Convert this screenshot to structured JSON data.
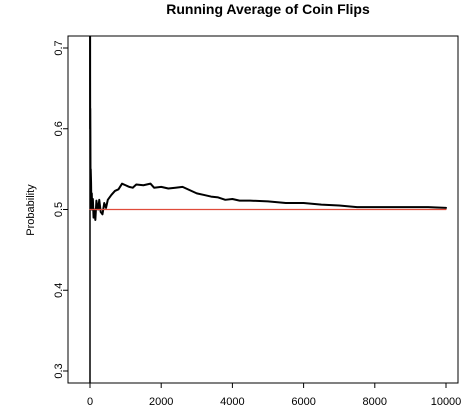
{
  "chart_data": {
    "type": "line",
    "title": "Running Average of Coin Flips",
    "xlabel": "",
    "ylabel": "Probability",
    "xlim": [
      0,
      10000
    ],
    "ylim": [
      0.3,
      0.7
    ],
    "x_ticks": [
      0,
      2000,
      4000,
      6000,
      8000,
      10000
    ],
    "y_ticks": [
      0.3,
      0.4,
      0.5,
      0.6,
      0.7
    ],
    "grid": false,
    "legend": "none",
    "series": [
      {
        "color": "#000000",
        "x": [
          1,
          3,
          5,
          8,
          10,
          15,
          20,
          30,
          40,
          50,
          60,
          80,
          100,
          120,
          150,
          180,
          200,
          230,
          260,
          300,
          350,
          400,
          450,
          500,
          600,
          700,
          800,
          900,
          1000,
          1100,
          1200,
          1300,
          1500,
          1700,
          1800,
          2000,
          2200,
          2400,
          2600,
          2800,
          3000,
          3200,
          3400,
          3600,
          3800,
          4000,
          4200,
          4500,
          5000,
          5500,
          6000,
          6500,
          7000,
          7500,
          8000,
          8500,
          9000,
          9500,
          10000
        ],
        "y": [
          1.0,
          0.667,
          0.6,
          0.625,
          0.6,
          0.533,
          0.55,
          0.533,
          0.5,
          0.52,
          0.5,
          0.513,
          0.49,
          0.5,
          0.487,
          0.511,
          0.505,
          0.5,
          0.512,
          0.497,
          0.494,
          0.508,
          0.502,
          0.512,
          0.518,
          0.523,
          0.525,
          0.532,
          0.53,
          0.528,
          0.527,
          0.531,
          0.53,
          0.532,
          0.527,
          0.528,
          0.526,
          0.527,
          0.528,
          0.524,
          0.52,
          0.518,
          0.516,
          0.515,
          0.512,
          0.513,
          0.511,
          0.511,
          0.51,
          0.508,
          0.508,
          0.506,
          0.505,
          0.503,
          0.503,
          0.503,
          0.503,
          0.503,
          0.502
        ]
      },
      {
        "color": "#e04b3a",
        "x": [
          0,
          10000
        ],
        "y": [
          0.5,
          0.5
        ]
      }
    ],
    "vertical_line": {
      "x": 0,
      "color": "#000000"
    }
  }
}
